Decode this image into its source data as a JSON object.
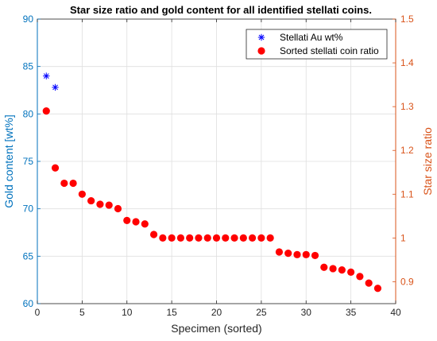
{
  "chart_data": {
    "type": "scatter",
    "title": "Star size ratio and gold content for all identified stellati coins.",
    "xlabel": "Specimen (sorted)",
    "ylabel_left": "Gold content [wt%]",
    "ylabel_right": "Star size ratio",
    "xlim": [
      0,
      40
    ],
    "ylim_left": [
      60,
      90
    ],
    "ylim_right": [
      0.85,
      1.5
    ],
    "x_ticks": [
      0,
      5,
      10,
      15,
      20,
      25,
      30,
      35,
      40
    ],
    "y_left_ticks": [
      60,
      65,
      70,
      75,
      80,
      85,
      90
    ],
    "y_right_ticks": [
      0.9,
      1,
      1.1,
      1.2,
      1.3,
      1.4,
      1.5
    ],
    "y_right_tick_labels": [
      "0.9",
      "1",
      "1.1",
      "1.2",
      "1.3",
      "1.4",
      "1.5"
    ],
    "grid": true,
    "legend_position": "top-right",
    "colors": {
      "left_axis": "#0072BD",
      "right_axis": "#D95319",
      "au_marker": "#0000FF",
      "ratio_marker": "#FF0000",
      "grid": "#DFDFDF"
    },
    "series": [
      {
        "name": "Stellati Au wt%",
        "axis": "left",
        "marker": "asterisk",
        "x": [
          1,
          2
        ],
        "y": [
          84.0,
          82.8
        ]
      },
      {
        "name": "Sorted stellati coin ratio",
        "axis": "right",
        "marker": "filled-circle",
        "x": [
          1,
          2,
          3,
          4,
          5,
          6,
          7,
          8,
          9,
          10,
          11,
          12,
          13,
          14,
          15,
          16,
          17,
          18,
          19,
          20,
          21,
          22,
          23,
          24,
          25,
          26,
          27,
          28,
          29,
          30,
          31,
          32,
          33,
          34,
          35,
          36,
          37,
          38
        ],
        "y": [
          1.29,
          1.16,
          1.125,
          1.125,
          1.1,
          1.085,
          1.077,
          1.075,
          1.067,
          1.04,
          1.037,
          1.032,
          1.008,
          1.0,
          1.0,
          1.0,
          1.0,
          1.0,
          1.0,
          1.0,
          1.0,
          1.0,
          1.0,
          1.0,
          1.0,
          1.0,
          0.968,
          0.965,
          0.962,
          0.962,
          0.96,
          0.933,
          0.93,
          0.927,
          0.922,
          0.912,
          0.897,
          0.885
        ]
      }
    ]
  }
}
